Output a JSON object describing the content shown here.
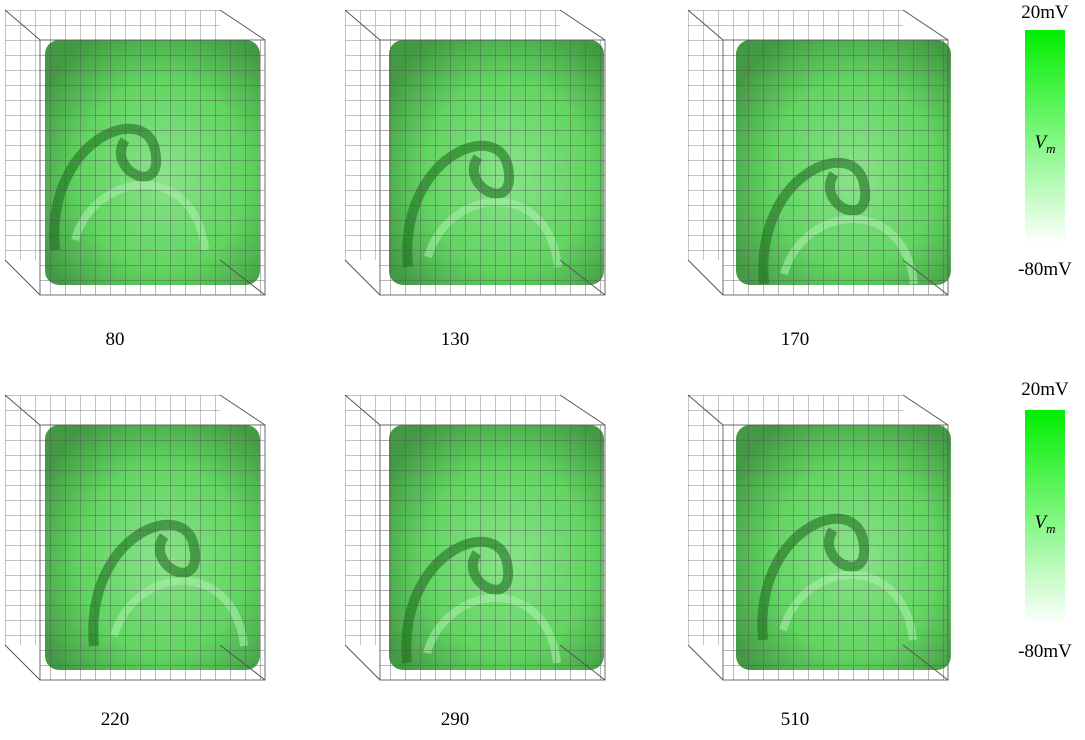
{
  "panels": [
    {
      "label": "80"
    },
    {
      "label": "130"
    },
    {
      "label": "170"
    },
    {
      "label": "220"
    },
    {
      "label": "290"
    },
    {
      "label": "510"
    }
  ],
  "colorbars": [
    {
      "top": "20mV",
      "symbol": "V",
      "subscript": "m",
      "bottom": "-80mV"
    },
    {
      "top": "20mV",
      "symbol": "V",
      "subscript": "m",
      "bottom": "-80mV"
    }
  ]
}
